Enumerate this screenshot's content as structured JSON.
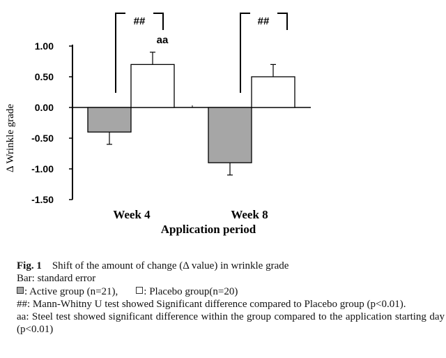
{
  "chart_data": {
    "type": "bar",
    "ylabel": "Δ Wrinkle grade",
    "xlabel": "Application period",
    "categories": [
      "Week 4",
      "Week 8"
    ],
    "ylim": [
      -1.5,
      1.0
    ],
    "yticks": [
      "1.00",
      "0.50",
      "0.00",
      "-0.50",
      "-1.00",
      "-1.50"
    ],
    "series": [
      {
        "name": "Active group (n=21)",
        "color": "#a6a6a6",
        "values": [
          -0.4,
          -0.9
        ],
        "errors": [
          0.2,
          0.2
        ]
      },
      {
        "name": "Placebo group(n=20)",
        "color": "#ffffff",
        "values": [
          0.7,
          0.5
        ],
        "errors": [
          0.2,
          0.2
        ]
      }
    ],
    "annotations": [
      {
        "label": "##",
        "category": "Week 4",
        "type": "bracket"
      },
      {
        "label": "aa",
        "category": "Week 4",
        "series": "Placebo group(n=20)"
      },
      {
        "label": "##",
        "category": "Week 8",
        "type": "bracket"
      }
    ]
  },
  "caption": {
    "fig_label": "Fig. 1",
    "title": "Shift of the amount of change (Δ value) in wrinkle grade",
    "bar_note": "Bar: standard error",
    "active_legend": ": Active group (n=21),",
    "placebo_legend": ": Placebo group(n=20)",
    "note_hash": "##: Mann-Whitny U test showed Significant difference compared to Placebo group (p<0.01).",
    "note_aa": "aa: Steel test showed significant difference within the group compared to the application starting day (p<0.01)"
  }
}
